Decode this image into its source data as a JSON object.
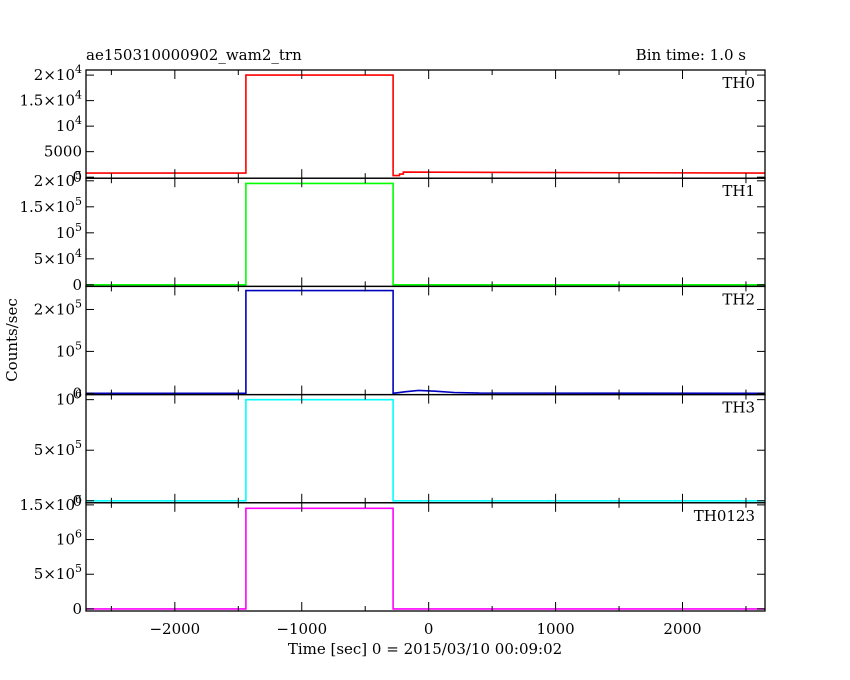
{
  "header": {
    "title": "ae150310000902_wam2_trn",
    "bin_time": "Bin time: 1.0 s"
  },
  "axes": {
    "xlabel": "Time [sec] 0 = 2015/03/10 00:09:02",
    "ylabel": "Counts/sec"
  },
  "chart_data": {
    "type": "line",
    "xlabel": "Time [sec] 0 = 2015/03/10 00:09:02",
    "ylabel": "Counts/sec",
    "xlim": [
      -2700,
      2650
    ],
    "x_ticks": [
      {
        "value": -2000,
        "label": "−2000"
      },
      {
        "value": -1000,
        "label": "−1000"
      },
      {
        "value": 0,
        "label": "0"
      },
      {
        "value": 1000,
        "label": "1000"
      },
      {
        "value": 2000,
        "label": "2000"
      }
    ],
    "panels": [
      {
        "name": "TH0",
        "color": "#ff0000",
        "ylim": [
          -200,
          21000
        ],
        "y_ticks": [
          {
            "value": 0,
            "base": "0",
            "exp": ""
          },
          {
            "value": 5000,
            "base": "5000",
            "exp": ""
          },
          {
            "value": 10000,
            "base": "10",
            "exp": "4"
          },
          {
            "value": 15000,
            "base": "1.5×10",
            "exp": "4"
          },
          {
            "value": 20000,
            "base": "2×10",
            "exp": "4"
          }
        ],
        "x": [
          -2700,
          -1440,
          -1440,
          -280,
          -280,
          -230,
          -230,
          -200,
          -200,
          2650
        ],
        "y": [
          800,
          800,
          20000,
          20000,
          300,
          300,
          600,
          600,
          1000,
          800
        ]
      },
      {
        "name": "TH1",
        "color": "#00ff00",
        "ylim": [
          -3000,
          205000
        ],
        "y_ticks": [
          {
            "value": 0,
            "base": "0",
            "exp": ""
          },
          {
            "value": 50000,
            "base": "5×10",
            "exp": "4"
          },
          {
            "value": 100000,
            "base": "10",
            "exp": "5"
          },
          {
            "value": 150000,
            "base": "1.5×10",
            "exp": "5"
          },
          {
            "value": 200000,
            "base": "2×10",
            "exp": "5"
          }
        ],
        "x": [
          -2700,
          -1440,
          -1440,
          -280,
          -280,
          2650
        ],
        "y": [
          0,
          0,
          195000,
          195000,
          0,
          0
        ]
      },
      {
        "name": "TH2",
        "color": "#0000c0",
        "ylim": [
          -3000,
          255000
        ],
        "y_ticks": [
          {
            "value": 0,
            "base": "0",
            "exp": ""
          },
          {
            "value": 100000,
            "base": "10",
            "exp": "5"
          },
          {
            "value": 200000,
            "base": "2×10",
            "exp": "5"
          }
        ],
        "x": [
          -2700,
          -1440,
          -1440,
          -280,
          -280,
          -180,
          -80,
          50,
          200,
          400,
          2650
        ],
        "y": [
          0,
          0,
          245000,
          245000,
          0,
          4000,
          7000,
          5000,
          2000,
          600,
          0
        ]
      },
      {
        "name": "TH3",
        "color": "#00ffff",
        "ylim": [
          -20000,
          1050000
        ],
        "y_ticks": [
          {
            "value": 0,
            "base": "0",
            "exp": ""
          },
          {
            "value": 500000,
            "base": "5×10",
            "exp": "5"
          },
          {
            "value": 1000000,
            "base": "10",
            "exp": "6"
          }
        ],
        "x": [
          -2700,
          -1440,
          -1440,
          -280,
          -280,
          2650
        ],
        "y": [
          0,
          0,
          1000000,
          1000000,
          0,
          0
        ]
      },
      {
        "name": "TH0123",
        "color": "#ff00ff",
        "ylim": [
          -30000,
          1530000
        ],
        "y_ticks": [
          {
            "value": 0,
            "base": "0",
            "exp": ""
          },
          {
            "value": 500000,
            "base": "5×10",
            "exp": "5"
          },
          {
            "value": 1000000,
            "base": "10",
            "exp": "6"
          },
          {
            "value": 1500000,
            "base": "1.5×10",
            "exp": "6"
          }
        ],
        "x": [
          -2700,
          -1440,
          -1440,
          -280,
          -280,
          2650
        ],
        "y": [
          0,
          0,
          1450000,
          1450000,
          0,
          0
        ]
      }
    ]
  }
}
